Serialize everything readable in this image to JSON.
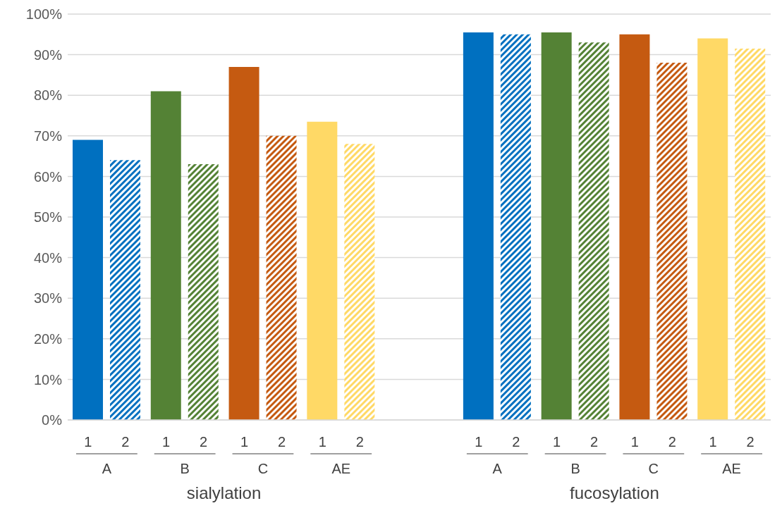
{
  "chart_data": {
    "type": "bar",
    "categories": [
      "A",
      "B",
      "C",
      "AE",
      null,
      "A",
      "B",
      "C",
      "AE"
    ],
    "series": [
      {
        "name": "1",
        "colors": [
          "#0070c0",
          "#548235",
          "#c55a11",
          "#ffd966",
          null,
          "#0070c0",
          "#548235",
          "#c55a11",
          "#ffd966"
        ],
        "values": [
          69,
          81,
          87,
          73.5,
          null,
          95.5,
          95.5,
          95,
          94
        ]
      },
      {
        "name": "2",
        "colors": [
          "#0070c0",
          "#548235",
          "#c55a11",
          "#ffd966",
          null,
          "#0070c0",
          "#548235",
          "#c55a11",
          "#ffd966"
        ],
        "values": [
          64,
          63,
          70,
          68,
          null,
          95,
          93,
          88,
          91.5
        ]
      }
    ],
    "ylim": [
      0,
      100
    ],
    "yticks": [
      {
        "value": 0,
        "label": "0%"
      },
      {
        "value": 10,
        "label": "10%"
      },
      {
        "value": 20,
        "label": "20%"
      },
      {
        "value": 30,
        "label": "30%"
      },
      {
        "value": 40,
        "label": "40%"
      },
      {
        "value": 50,
        "label": "50%"
      },
      {
        "value": 60,
        "label": "60%"
      },
      {
        "value": 70,
        "label": "70%"
      },
      {
        "value": 80,
        "label": "80%"
      },
      {
        "value": 90,
        "label": "90%"
      },
      {
        "value": 100,
        "label": "100%"
      }
    ],
    "grid": "y",
    "annotations": [
      "sialylation",
      "fucosylation"
    ]
  }
}
